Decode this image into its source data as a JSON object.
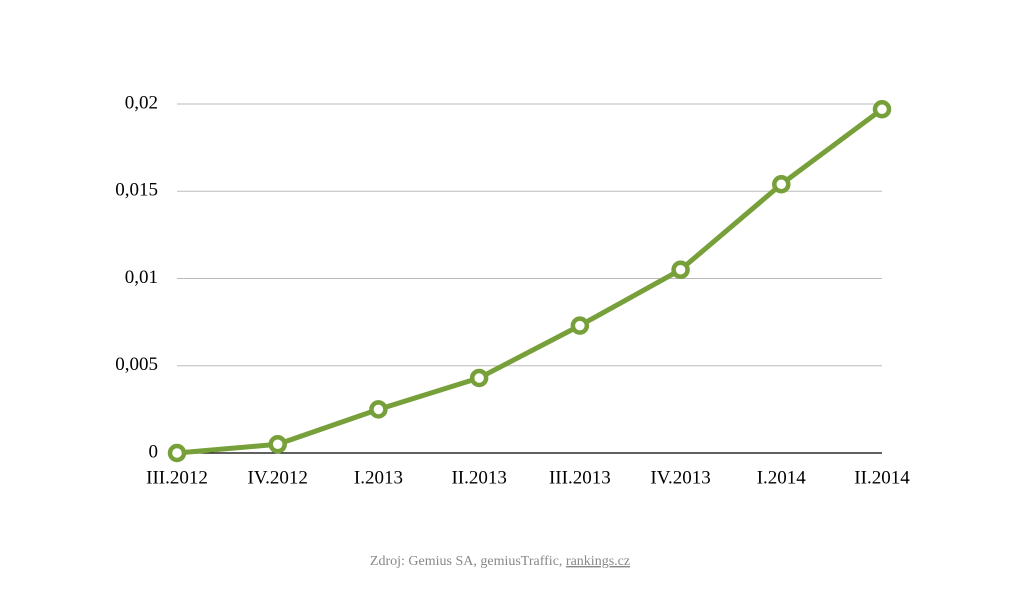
{
  "chart_data": {
    "type": "line",
    "categories": [
      "III.2012",
      "IV.2012",
      "I.2013",
      "II.2013",
      "III.2013",
      "IV.2013",
      "I.2014",
      "II.2014"
    ],
    "series": [
      {
        "name": null,
        "color": "#77a03a",
        "values": [
          0,
          0.0005,
          0.0025,
          0.0043,
          0.0073,
          0.0105,
          0.0154,
          0.0197
        ]
      }
    ],
    "ylim": [
      0,
      0.02
    ],
    "yticks": [
      0,
      {
        "value": 0.005,
        "label": "0,005"
      },
      {
        "value": 0.01,
        "label": "0,01"
      },
      {
        "value": 0.015,
        "label": "0,015"
      },
      {
        "value": 0.02,
        "label": "0,02"
      }
    ],
    "grid": true,
    "source": "Zdroj: Gemius SA, gemiusTraffic,",
    "source_link": "rankings.cz"
  }
}
